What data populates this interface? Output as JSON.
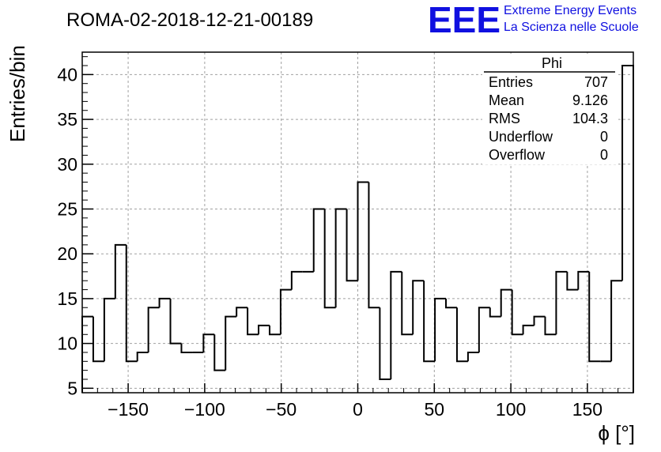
{
  "colors": {
    "line": "#000000",
    "grid": "#a0a0a0",
    "logo": "#1010e0"
  },
  "logo": {
    "mark": "EEE",
    "line1": "Extreme Energy Events",
    "line2": "La Scienza nelle Scuole"
  },
  "stats": {
    "name": "Phi",
    "rows": [
      {
        "label": "Entries",
        "value": "707"
      },
      {
        "label": "Mean",
        "value": "9.126"
      },
      {
        "label": "RMS",
        "value": "104.3"
      },
      {
        "label": "Underflow",
        "value": "0"
      },
      {
        "label": "Overflow",
        "value": "0"
      }
    ]
  },
  "chart_data": {
    "type": "histogram",
    "title": "ROMA-02-2018-12-21-00189",
    "xlabel": "ϕ [°]",
    "ylabel": "Entries/bin",
    "xlim": [
      -180,
      180
    ],
    "ylim": [
      4.5,
      42.5
    ],
    "bin_width": 7.2,
    "grid": true,
    "xticks": [
      -150,
      -100,
      -50,
      0,
      50,
      100,
      150
    ],
    "xtick_labels": [
      "−150",
      "−100",
      "−50",
      "0",
      "50",
      "100",
      "150"
    ],
    "yticks": [
      5,
      10,
      15,
      20,
      25,
      30,
      35,
      40
    ],
    "ytick_labels": [
      "5",
      "10",
      "15",
      "20",
      "25",
      "30",
      "35",
      "40"
    ],
    "values": [
      13,
      8,
      15,
      21,
      8,
      9,
      14,
      15,
      10,
      9,
      9,
      11,
      7,
      13,
      14,
      11,
      12,
      11,
      16,
      18,
      18,
      25,
      14,
      25,
      17,
      28,
      14,
      6,
      18,
      11,
      17,
      8,
      15,
      14,
      8,
      9,
      14,
      13,
      16,
      11,
      12,
      13,
      11,
      18,
      16,
      18,
      8,
      8,
      17,
      41
    ]
  }
}
